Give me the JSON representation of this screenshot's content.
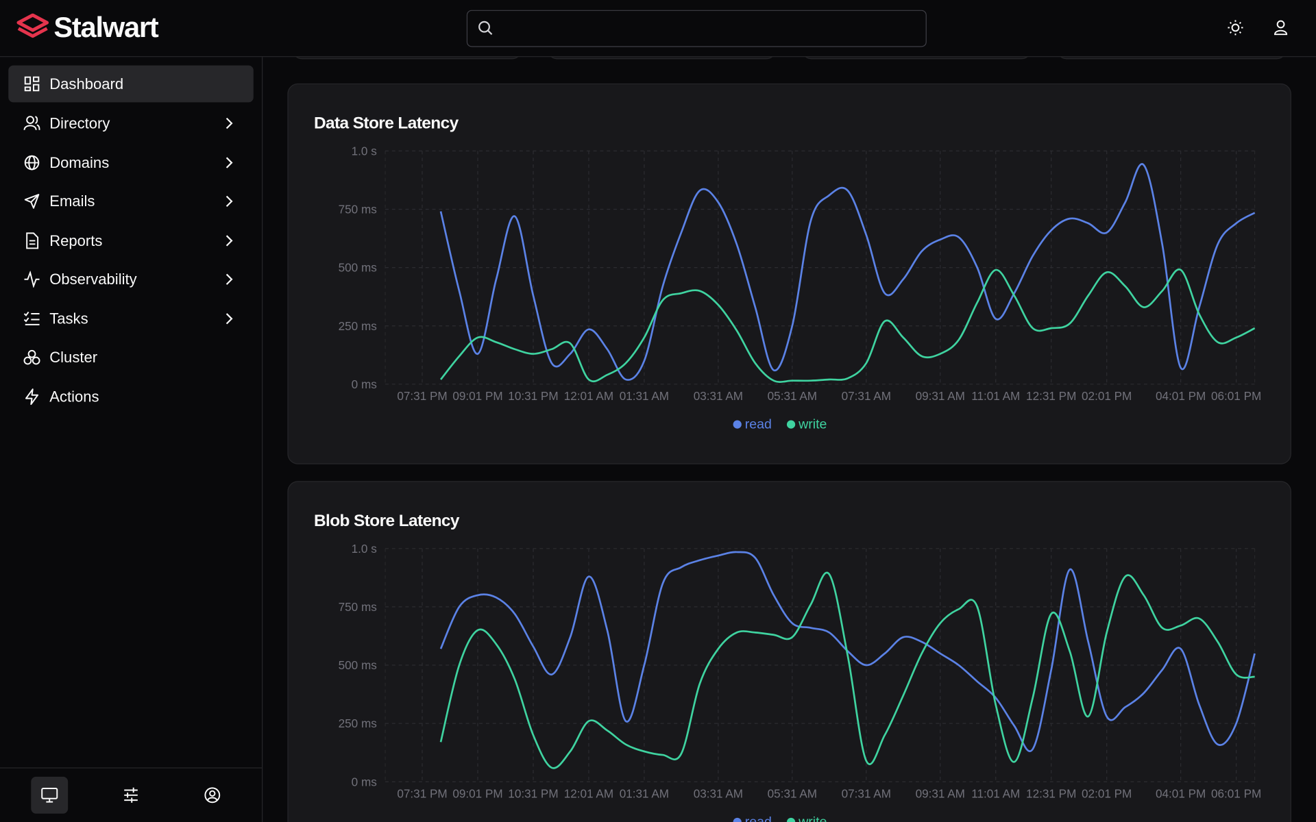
{
  "brand": "Stalwart",
  "nav": [
    "Dashboard",
    "Directory",
    "Domains",
    "Emails",
    "Reports",
    "Observability",
    "Tasks",
    "Cluster",
    "Actions"
  ],
  "chart_data": [
    {
      "type": "line",
      "title": "Data Store Latency",
      "categories": [
        "07:31 PM",
        null,
        null,
        "09:01 PM",
        null,
        null,
        "10:31 PM",
        null,
        null,
        "12:01 AM",
        null,
        null,
        "01:31 AM",
        null,
        null,
        null,
        "03:31 AM",
        null,
        null,
        null,
        "05:31 AM",
        null,
        null,
        null,
        "07:31 AM",
        null,
        null,
        null,
        "09:31 AM",
        null,
        null,
        "11:01 AM",
        null,
        null,
        "12:31 PM",
        null,
        null,
        "02:01 PM",
        null,
        null,
        null,
        "04:01 PM",
        null,
        null,
        "06:01 PM",
        null
      ],
      "series": [
        {
          "name": "read",
          "color": "#5b82e6",
          "values": [
            null,
            741,
            400,
            130,
            450,
            720,
            380,
            90,
            130,
            235,
            150,
            20,
            100,
            420,
            650,
            830,
            780,
            600,
            330,
            60,
            250,
            700,
            810,
            830,
            640,
            390,
            450,
            570,
            620,
            630,
            500,
            280,
            390,
            550,
            660,
            710,
            690,
            650,
            780,
            940,
            600,
            70,
            330,
            600,
            690,
            735
          ]
        },
        {
          "name": "write",
          "color": "#3fd3a0",
          "values": [
            null,
            20,
            120,
            200,
            180,
            150,
            130,
            150,
            175,
            20,
            40,
            90,
            200,
            360,
            390,
            400,
            340,
            230,
            90,
            15,
            15,
            15,
            20,
            25,
            90,
            270,
            200,
            120,
            130,
            190,
            350,
            490,
            380,
            240,
            240,
            260,
            380,
            480,
            420,
            330,
            400,
            490,
            300,
            180,
            200,
            240
          ]
        }
      ],
      "ylim": [
        0,
        1000
      ],
      "yticks": [
        {
          "value": 0,
          "label": "0 ms"
        },
        {
          "value": 250,
          "label": "250 ms"
        },
        {
          "value": 500,
          "label": "500 ms"
        },
        {
          "value": 750,
          "label": "750 ms"
        },
        {
          "value": 1000,
          "label": "1.0 s"
        }
      ],
      "grid": true,
      "legend": "bottom"
    },
    {
      "type": "line",
      "title": "Blob Store Latency",
      "categories": [
        "07:31 PM",
        null,
        null,
        "09:01 PM",
        null,
        null,
        "10:31 PM",
        null,
        null,
        "12:01 AM",
        null,
        null,
        "01:31 AM",
        null,
        null,
        null,
        "03:31 AM",
        null,
        null,
        null,
        "05:31 AM",
        null,
        null,
        null,
        "07:31 AM",
        null,
        null,
        null,
        "09:31 AM",
        null,
        null,
        "11:01 AM",
        null,
        null,
        "12:31 PM",
        null,
        null,
        "02:01 PM",
        null,
        null,
        null,
        "04:01 PM",
        null,
        null,
        "06:01 PM",
        null
      ],
      "series": [
        {
          "name": "read",
          "color": "#5b82e6",
          "values": [
            null,
            570,
            750,
            800,
            790,
            720,
            580,
            460,
            620,
            880,
            650,
            260,
            500,
            850,
            920,
            950,
            970,
            985,
            960,
            800,
            680,
            660,
            640,
            560,
            500,
            550,
            620,
            600,
            550,
            500,
            430,
            360,
            240,
            140,
            480,
            910,
            600,
            280,
            320,
            380,
            480,
            570,
            330,
            160,
            250,
            550
          ]
        },
        {
          "name": "write",
          "color": "#3fd3a0",
          "values": [
            null,
            170,
            500,
            650,
            590,
            440,
            200,
            60,
            130,
            260,
            220,
            160,
            130,
            115,
            120,
            420,
            570,
            640,
            640,
            630,
            620,
            760,
            890,
            540,
            90,
            200,
            370,
            550,
            680,
            740,
            750,
            330,
            85,
            360,
            720,
            560,
            280,
            640,
            880,
            800,
            660,
            670,
            700,
            600,
            460,
            450
          ]
        }
      ],
      "ylim": [
        0,
        1000
      ],
      "yticks": [
        {
          "value": 0,
          "label": "0 ms"
        },
        {
          "value": 250,
          "label": "250 ms"
        },
        {
          "value": 500,
          "label": "500 ms"
        },
        {
          "value": 750,
          "label": "750 ms"
        },
        {
          "value": 1000,
          "label": "1.0 s"
        }
      ],
      "grid": true,
      "legend": "bottom"
    }
  ]
}
